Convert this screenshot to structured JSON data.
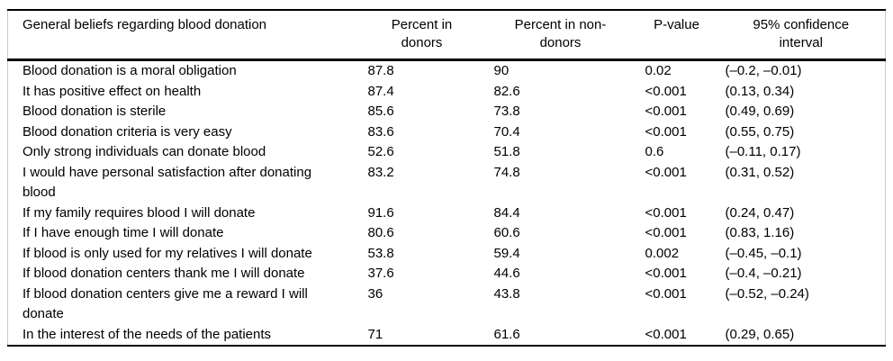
{
  "table": {
    "columns": {
      "belief": "General beliefs regarding blood donation",
      "percent_donors": "Percent in\ndonors",
      "percent_non_donors": "Percent in non-\ndonors",
      "p_value": "P-value",
      "confidence_interval": "95% confidence\ninterval"
    },
    "rows": [
      {
        "belief": "Blood donation is a moral obligation",
        "percent_donors": "87.8",
        "percent_non_donors": "90",
        "p_value": "0.02",
        "confidence_interval": "(–0.2, –0.01)"
      },
      {
        "belief": "It has positive effect on health",
        "percent_donors": "87.4",
        "percent_non_donors": "82.6",
        "p_value": "<0.001",
        "confidence_interval": "(0.13, 0.34)"
      },
      {
        "belief": "Blood donation is sterile",
        "percent_donors": "85.6",
        "percent_non_donors": "73.8",
        "p_value": "<0.001",
        "confidence_interval": "(0.49, 0.69)"
      },
      {
        "belief": "Blood donation criteria is very easy",
        "percent_donors": "83.6",
        "percent_non_donors": "70.4",
        "p_value": "<0.001",
        "confidence_interval": "(0.55, 0.75)"
      },
      {
        "belief": "Only strong individuals can donate blood",
        "percent_donors": "52.6",
        "percent_non_donors": "51.8",
        "p_value": "0.6",
        "confidence_interval": "(–0.11, 0.17)"
      },
      {
        "belief": "I would have personal satisfaction after donating blood",
        "percent_donors": "83.2",
        "percent_non_donors": "74.8",
        "p_value": "<0.001",
        "confidence_interval": "(0.31, 0.52)"
      },
      {
        "belief": "If my family requires blood I will donate",
        "percent_donors": "91.6",
        "percent_non_donors": "84.4",
        "p_value": "<0.001",
        "confidence_interval": "(0.24, 0.47)"
      },
      {
        "belief": "If I have enough time I will donate",
        "percent_donors": "80.6",
        "percent_non_donors": "60.6",
        "p_value": "<0.001",
        "confidence_interval": "(0.83, 1.16)"
      },
      {
        "belief": "If blood is only used for my relatives I will donate",
        "percent_donors": "53.8",
        "percent_non_donors": "59.4",
        "p_value": "0.002",
        "confidence_interval": "(–0.45, –0.1)"
      },
      {
        "belief": "If blood donation centers thank me I will donate",
        "percent_donors": "37.6",
        "percent_non_donors": "44.6",
        "p_value": "<0.001",
        "confidence_interval": "(–0.4, –0.21)"
      },
      {
        "belief": "If blood donation centers give me a reward I will donate",
        "percent_donors": "36",
        "percent_non_donors": "43.8",
        "p_value": "<0.001",
        "confidence_interval": "(–0.52, –0.24)"
      },
      {
        "belief": "In the interest of the needs of the patients",
        "percent_donors": "71",
        "percent_non_donors": "61.6",
        "p_value": "<0.001",
        "confidence_interval": "(0.29, 0.65)"
      }
    ]
  }
}
